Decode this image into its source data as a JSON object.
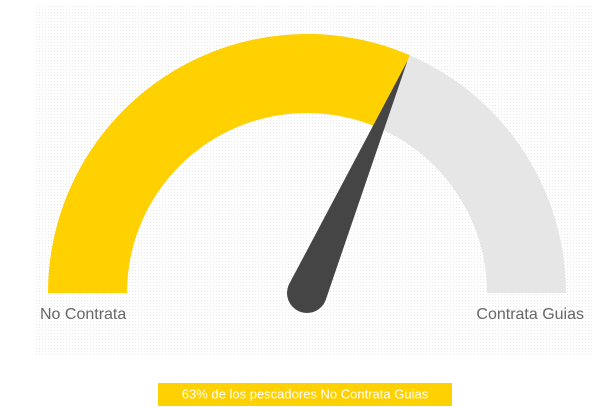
{
  "chart_data": {
    "type": "gauge",
    "value": 63,
    "ylim": [
      0,
      100
    ],
    "min_label": "No Contrata",
    "max_label": "Contrata Guias",
    "caption": "63% de los pescadores No Contrata Guias",
    "color": "#ffd100",
    "track_color": "#e6e6e6",
    "needle_color": "#454545"
  }
}
